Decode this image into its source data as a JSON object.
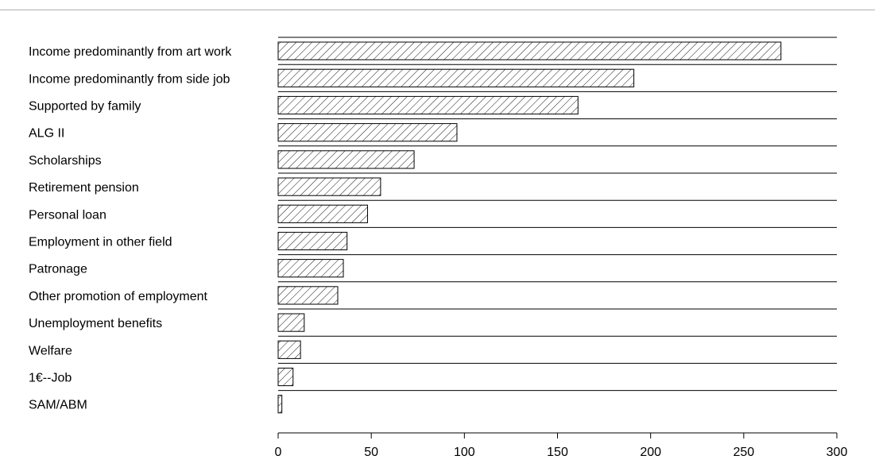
{
  "chart_data": {
    "type": "bar",
    "orientation": "horizontal",
    "categories": [
      "Income predominantly from art work",
      "Income predominantly from side job",
      "Supported by family",
      "ALG II",
      "Scholarships",
      "Retirement pension",
      "Personal loan",
      "Employment in other field",
      "Patronage",
      "Other promotion of employment",
      "Unemployment benefits",
      "Welfare",
      "1€--Job",
      "SAM/ABM"
    ],
    "values": [
      270,
      191,
      161,
      96,
      73,
      55,
      48,
      37,
      35,
      32,
      14,
      12,
      8,
      2
    ],
    "xlim": [
      0,
      300
    ],
    "xticks": [
      0,
      50,
      100,
      150,
      200,
      250,
      300
    ],
    "xtick_labels": [
      "0",
      "50",
      "100",
      "150",
      "200",
      "250",
      "300"
    ],
    "title": "",
    "xlabel": "",
    "ylabel": "",
    "bar_fill": "diagonal hatch",
    "grid": false,
    "legend": "none",
    "colors": {
      "bar_stroke": "#000000",
      "hatch": "#000000",
      "row_rule": "#000000",
      "background": "#ffffff"
    }
  }
}
